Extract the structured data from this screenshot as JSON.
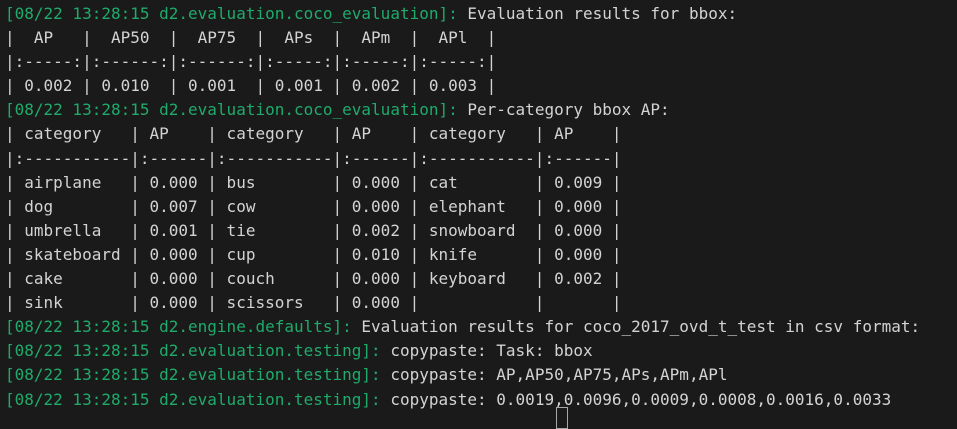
{
  "terminal": {
    "colors": {
      "background": "#1a1a1a",
      "foreground": "#d2d4d2",
      "log_green": "#1fab6a"
    },
    "timestamp": "08/22 13:28:15",
    "loggers": [
      "d2.evaluation.coco_evaluation",
      "d2.engine.defaults",
      "d2.evaluation.testing"
    ],
    "lines": [
      {
        "prefix": "[08/22 13:28:15 d2.evaluation.coco_evaluation]:",
        "text": " Evaluation results for bbox:"
      },
      {
        "prefix": "",
        "text": "|  AP   |  AP50  |  AP75  |  APs  |  APm  |  APl  |"
      },
      {
        "prefix": "",
        "text": "|:-----:|:------:|:------:|:-----:|:-----:|:-----:|"
      },
      {
        "prefix": "",
        "text": "| 0.002 | 0.010  | 0.001  | 0.001 | 0.002 | 0.003 |"
      },
      {
        "prefix": "[08/22 13:28:15 d2.evaluation.coco_evaluation]:",
        "text": " Per-category bbox AP:"
      },
      {
        "prefix": "",
        "text": "| category   | AP    | category   | AP    | category   | AP    |"
      },
      {
        "prefix": "",
        "text": "|:-----------|:------|:-----------|:------|:-----------|:------|"
      },
      {
        "prefix": "",
        "text": "| airplane   | 0.000 | bus        | 0.000 | cat        | 0.009 |"
      },
      {
        "prefix": "",
        "text": "| dog        | 0.007 | cow        | 0.000 | elephant   | 0.000 |"
      },
      {
        "prefix": "",
        "text": "| umbrella   | 0.001 | tie        | 0.002 | snowboard  | 0.000 |"
      },
      {
        "prefix": "",
        "text": "| skateboard | 0.000 | cup        | 0.010 | knife      | 0.000 |"
      },
      {
        "prefix": "",
        "text": "| cake       | 0.000 | couch      | 0.000 | keyboard   | 0.002 |"
      },
      {
        "prefix": "",
        "text": "| sink       | 0.000 | scissors   | 0.000 |            |       |"
      },
      {
        "prefix": "[08/22 13:28:15 d2.engine.defaults]:",
        "text": " Evaluation results for coco_2017_ovd_t_test in csv format:"
      },
      {
        "prefix": "[08/22 13:28:15 d2.evaluation.testing]:",
        "text": " copypaste: Task: bbox"
      },
      {
        "prefix": "[08/22 13:28:15 d2.evaluation.testing]:",
        "text": " copypaste: AP,AP50,AP75,APs,APm,APl"
      },
      {
        "prefix": "[08/22 13:28:15 d2.evaluation.testing]:",
        "text": " copypaste: 0.0019,0.0096,0.0009,0.0008,0.0016,0.0033"
      }
    ],
    "summary_table": {
      "title": "Evaluation results for bbox",
      "columns": [
        "AP",
        "AP50",
        "AP75",
        "APs",
        "APm",
        "APl"
      ],
      "values": [
        0.002,
        0.01,
        0.001,
        0.001,
        0.002,
        0.003
      ]
    },
    "per_category_table": {
      "title": "Per-category bbox AP",
      "columns": [
        "category",
        "AP"
      ],
      "rows": [
        [
          "airplane",
          0.0
        ],
        [
          "bus",
          0.0
        ],
        [
          "cat",
          0.009
        ],
        [
          "dog",
          0.007
        ],
        [
          "cow",
          0.0
        ],
        [
          "elephant",
          0.0
        ],
        [
          "umbrella",
          0.001
        ],
        [
          "tie",
          0.002
        ],
        [
          "snowboard",
          0.0
        ],
        [
          "skateboard",
          0.0
        ],
        [
          "cup",
          0.01
        ],
        [
          "knife",
          0.0
        ],
        [
          "cake",
          0.0
        ],
        [
          "couch",
          0.0
        ],
        [
          "keyboard",
          0.002
        ],
        [
          "sink",
          0.0
        ],
        [
          "scissors",
          0.0
        ]
      ]
    },
    "csv_results": {
      "dataset": "coco_2017_ovd_t_test",
      "task": "bbox",
      "header": "AP,AP50,AP75,APs,APm,APl",
      "values": "0.0019,0.0096,0.0009,0.0008,0.0016,0.0033"
    }
  }
}
